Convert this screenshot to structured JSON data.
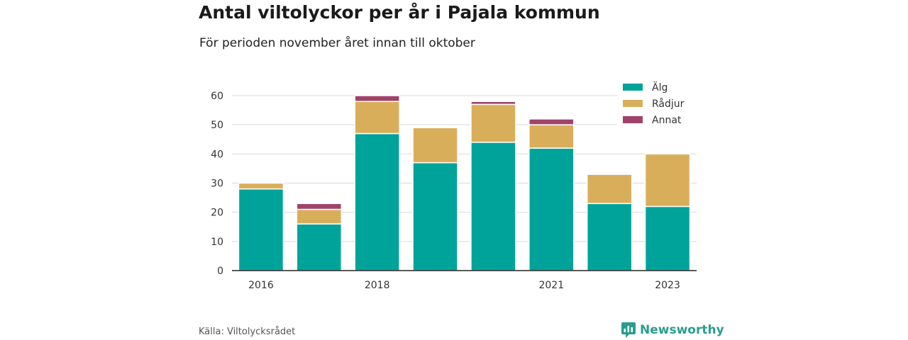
{
  "title": "Antal viltolyckor per år i Pajala kommun",
  "subtitle": "För perioden november året innan till oktober",
  "source": "Källa: Viltolycksrådet",
  "brand": {
    "name": "Newsworthy",
    "icon": "newsworthy-logo-icon",
    "color": "#2a9d8f"
  },
  "chart_data": {
    "type": "bar",
    "stacked": true,
    "categories": [
      "2016",
      "2017",
      "2018",
      "2019",
      "2020",
      "2021",
      "2022",
      "2023"
    ],
    "x_tick_labels": [
      "2016",
      "",
      "2018",
      "",
      "",
      "2021",
      "",
      "2023"
    ],
    "series": [
      {
        "name": "Älg",
        "color": "#00a39a",
        "values": [
          28,
          16,
          47,
          37,
          44,
          42,
          23,
          22
        ]
      },
      {
        "name": "Rådjur",
        "color": "#d9ae5b",
        "values": [
          2,
          5,
          11,
          12,
          13,
          8,
          10,
          18
        ]
      },
      {
        "name": "Annat",
        "color": "#a0426a",
        "values": [
          0,
          2,
          2,
          0,
          1,
          2,
          0,
          0
        ]
      }
    ],
    "ylim": [
      0,
      60
    ],
    "yticks": [
      0,
      10,
      20,
      30,
      40,
      50,
      60
    ],
    "grid": true,
    "legend": "top-right"
  }
}
